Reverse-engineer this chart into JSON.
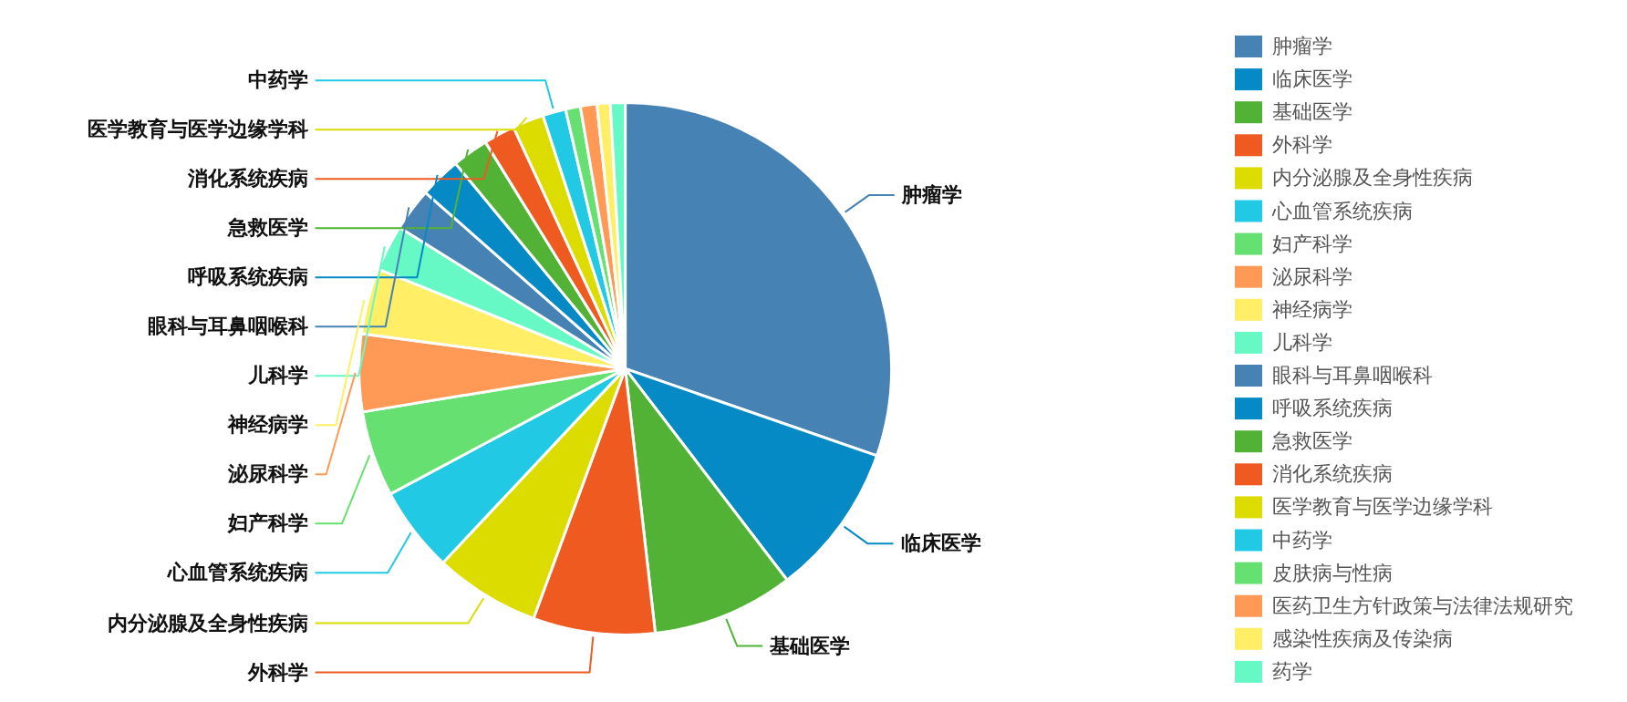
{
  "chart_data": {
    "type": "pie",
    "categories": [
      "肿瘤学",
      "临床医学",
      "基础医学",
      "外科学",
      "内分泌腺及全身性疾病",
      "心血管系统疾病",
      "妇产科学",
      "泌尿科学",
      "神经病学",
      "儿科学",
      "眼科与耳鼻咽喉科",
      "呼吸系统疾病",
      "急救医学",
      "消化系统疾病",
      "医学教育与医学边缘学科",
      "中药学",
      "皮肤病与性病",
      "医药卫生方针政策与法律法规研究",
      "感染性疾病及传染病",
      "药学"
    ],
    "values": [
      30.3,
      9.3,
      8.6,
      7.4,
      6.4,
      5.2,
      5.2,
      4.7,
      4.0,
      2.8,
      2.6,
      2.5,
      2.2,
      1.9,
      1.9,
      1.4,
      0.9,
      1.0,
      0.8,
      0.9
    ],
    "colors": [
      "#4682b4",
      "#068ac6",
      "#52b236",
      "#ee5a20",
      "#dcdc00",
      "#22c9e4",
      "#66e070",
      "#ff9955",
      "#ffee66",
      "#66f9c6",
      "#4682b4",
      "#068ac6",
      "#52b236",
      "#ee5a20",
      "#dcdc00",
      "#22c9e4",
      "#66e070",
      "#ff9955",
      "#ffee66",
      "#66f9c6"
    ],
    "legend": "right"
  }
}
